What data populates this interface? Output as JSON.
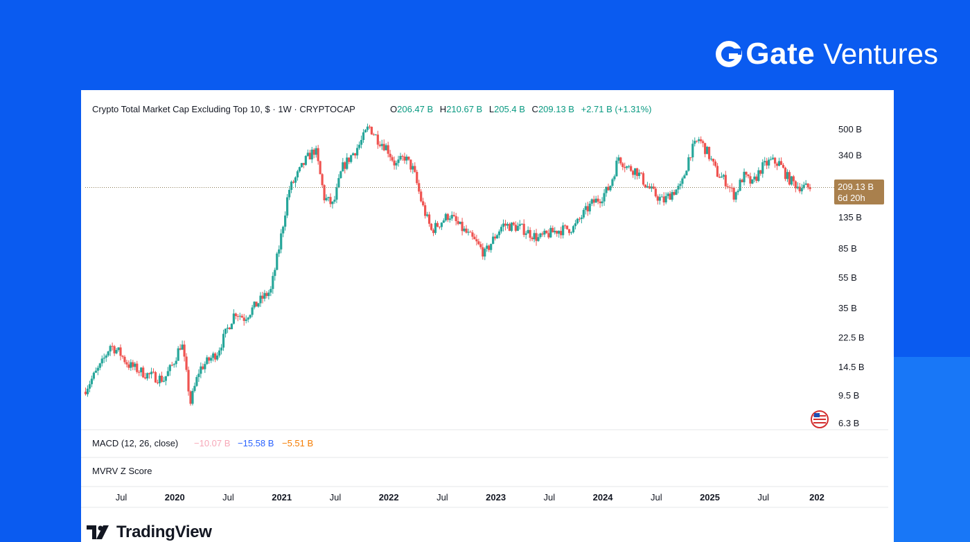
{
  "brand": {
    "name": "Gate",
    "suffix": "Ventures",
    "icon": "gate-logo-icon"
  },
  "watermark": {
    "name": "TradingView",
    "icon": "tradingview-logo-icon"
  },
  "colors": {
    "up": "#26a69a",
    "down": "#ef5350",
    "price_tag": "#a9804d",
    "macd_line": "#f7a8b8",
    "signal_line": "#2962ff",
    "histogram": "#f57c00"
  },
  "chart_data": {
    "type": "candlestick",
    "title": "Crypto Total Market Cap Excluding Top 10, $ · 1W · CRYPTOCAP",
    "ohlc_summary": {
      "open": "206.47 B",
      "high": "210.67 B",
      "low": "205.4 B",
      "close": "209.13 B",
      "change": "+2.71 B (+1.31%)"
    },
    "y_scale": "log",
    "y_ticks": [
      {
        "label": "500 B",
        "value": 500
      },
      {
        "label": "340 B",
        "value": 340
      },
      {
        "label": "135 B",
        "value": 135
      },
      {
        "label": "85 B",
        "value": 85
      },
      {
        "label": "55 B",
        "value": 55
      },
      {
        "label": "35 B",
        "value": 35
      },
      {
        "label": "22.5 B",
        "value": 22.5
      },
      {
        "label": "14.5 B",
        "value": 14.5
      },
      {
        "label": "9.5 B",
        "value": 9.5
      },
      {
        "label": "6.3 B",
        "value": 6.3
      }
    ],
    "last_price": {
      "value": 209.13,
      "label": "209.13 B",
      "countdown": "6d 20h"
    },
    "x_ticks": [
      {
        "label": "Jul",
        "date": "2019-07",
        "bold": false
      },
      {
        "label": "2020",
        "date": "2020-01",
        "bold": true
      },
      {
        "label": "Jul",
        "date": "2020-07",
        "bold": false
      },
      {
        "label": "2021",
        "date": "2021-01",
        "bold": true
      },
      {
        "label": "Jul",
        "date": "2021-07",
        "bold": false
      },
      {
        "label": "2022",
        "date": "2022-01",
        "bold": true
      },
      {
        "label": "Jul",
        "date": "2022-07",
        "bold": false
      },
      {
        "label": "2023",
        "date": "2023-01",
        "bold": true
      },
      {
        "label": "Jul",
        "date": "2023-07",
        "bold": false
      },
      {
        "label": "2024",
        "date": "2024-01",
        "bold": true
      },
      {
        "label": "Jul",
        "date": "2024-07",
        "bold": false
      },
      {
        "label": "2025",
        "date": "2025-01",
        "bold": true
      },
      {
        "label": "Jul",
        "date": "2025-07",
        "bold": false
      },
      {
        "label": "202",
        "date": "2026-01",
        "bold": true
      }
    ],
    "x_range": [
      "2019-03",
      "2026-01"
    ],
    "series": [
      {
        "name": "Crypto Total Market Cap Excluding Top 10",
        "unit": "B USD",
        "points": [
          {
            "date": "2019-03",
            "value": 10
          },
          {
            "date": "2019-05",
            "value": 15
          },
          {
            "date": "2019-06",
            "value": 20
          },
          {
            "date": "2019-07",
            "value": 18
          },
          {
            "date": "2019-08",
            "value": 15
          },
          {
            "date": "2019-10",
            "value": 13
          },
          {
            "date": "2019-12",
            "value": 12
          },
          {
            "date": "2020-01",
            "value": 15
          },
          {
            "date": "2020-02",
            "value": 21
          },
          {
            "date": "2020-03",
            "value": 8.5
          },
          {
            "date": "2020-04",
            "value": 14
          },
          {
            "date": "2020-06",
            "value": 18
          },
          {
            "date": "2020-08",
            "value": 33
          },
          {
            "date": "2020-09",
            "value": 30
          },
          {
            "date": "2020-11",
            "value": 40
          },
          {
            "date": "2020-12",
            "value": 45
          },
          {
            "date": "2021-01",
            "value": 90
          },
          {
            "date": "2021-02",
            "value": 200
          },
          {
            "date": "2021-04",
            "value": 320
          },
          {
            "date": "2021-05",
            "value": 370
          },
          {
            "date": "2021-06",
            "value": 180
          },
          {
            "date": "2021-07",
            "value": 160
          },
          {
            "date": "2021-08",
            "value": 280
          },
          {
            "date": "2021-10",
            "value": 400
          },
          {
            "date": "2021-11",
            "value": 520
          },
          {
            "date": "2021-12",
            "value": 430
          },
          {
            "date": "2022-01",
            "value": 380
          },
          {
            "date": "2022-02",
            "value": 290
          },
          {
            "date": "2022-03",
            "value": 330
          },
          {
            "date": "2022-04",
            "value": 270
          },
          {
            "date": "2022-05",
            "value": 160
          },
          {
            "date": "2022-06",
            "value": 110
          },
          {
            "date": "2022-08",
            "value": 140
          },
          {
            "date": "2022-09",
            "value": 120
          },
          {
            "date": "2022-11",
            "value": 92
          },
          {
            "date": "2022-12",
            "value": 78
          },
          {
            "date": "2023-01",
            "value": 98
          },
          {
            "date": "2023-02",
            "value": 120
          },
          {
            "date": "2023-04",
            "value": 115
          },
          {
            "date": "2023-06",
            "value": 98
          },
          {
            "date": "2023-08",
            "value": 110
          },
          {
            "date": "2023-10",
            "value": 115
          },
          {
            "date": "2023-11",
            "value": 140
          },
          {
            "date": "2023-12",
            "value": 165
          },
          {
            "date": "2024-01",
            "value": 180
          },
          {
            "date": "2024-02",
            "value": 210
          },
          {
            "date": "2024-03",
            "value": 330
          },
          {
            "date": "2024-04",
            "value": 280
          },
          {
            "date": "2024-05",
            "value": 270
          },
          {
            "date": "2024-06",
            "value": 220
          },
          {
            "date": "2024-07",
            "value": 190
          },
          {
            "date": "2024-08",
            "value": 170
          },
          {
            "date": "2024-09",
            "value": 195
          },
          {
            "date": "2024-10",
            "value": 210
          },
          {
            "date": "2024-11",
            "value": 350
          },
          {
            "date": "2024-12",
            "value": 430
          },
          {
            "date": "2025-01",
            "value": 350
          },
          {
            "date": "2025-02",
            "value": 260
          },
          {
            "date": "2025-03",
            "value": 230
          },
          {
            "date": "2025-04",
            "value": 185
          },
          {
            "date": "2025-05",
            "value": 250
          },
          {
            "date": "2025-06",
            "value": 220
          },
          {
            "date": "2025-07",
            "value": 280
          },
          {
            "date": "2025-08",
            "value": 310
          },
          {
            "date": "2025-09",
            "value": 300
          },
          {
            "date": "2025-10",
            "value": 240
          },
          {
            "date": "2025-11",
            "value": 215
          },
          {
            "date": "2025-12",
            "value": 209
          }
        ]
      }
    ],
    "indicators": [
      {
        "name": "MACD (12, 26, close)",
        "values": [
          "−10.07 B",
          "−15.58 B",
          "−5.51 B"
        ]
      },
      {
        "name": "MVRV Z Score",
        "values": []
      }
    ]
  }
}
